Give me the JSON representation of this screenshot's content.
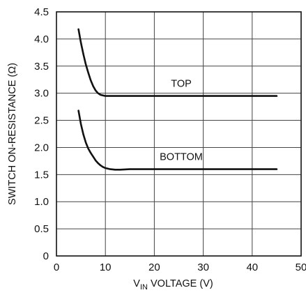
{
  "chart_data": {
    "type": "line",
    "title": "",
    "xlabel_prefix": "V",
    "xlabel_sub": "IN",
    "xlabel_suffix": " VOLTAGE (V)",
    "ylabel": "SWITCH ON-RESISTANCE (Ω)",
    "xlim": [
      0,
      50
    ],
    "ylim": [
      0,
      4.5
    ],
    "x_ticks": [
      0,
      10,
      20,
      30,
      40,
      50
    ],
    "x_tick_labels": [
      "0",
      "10",
      "20",
      "30",
      "40",
      "50"
    ],
    "y_ticks": [
      0,
      0.5,
      1.0,
      1.5,
      2.0,
      2.5,
      3.0,
      3.5,
      4.0,
      4.5
    ],
    "y_tick_labels": [
      "0",
      "0.5",
      "1.0",
      "1.5",
      "2.0",
      "2.5",
      "3.0",
      "3.5",
      "4.0",
      "4.5"
    ],
    "grid": true,
    "series": [
      {
        "name": "TOP",
        "x": [
          4.5,
          5,
          5.5,
          6,
          6.5,
          7,
          7.5,
          8,
          8.5,
          9,
          9.5,
          10,
          11,
          12,
          15,
          20,
          25,
          30,
          35,
          40,
          45
        ],
        "y": [
          4.18,
          3.93,
          3.72,
          3.53,
          3.38,
          3.24,
          3.13,
          3.05,
          3.0,
          2.97,
          2.96,
          2.95,
          2.95,
          2.95,
          2.95,
          2.95,
          2.95,
          2.95,
          2.95,
          2.95,
          2.95
        ]
      },
      {
        "name": "BOTTOM",
        "x": [
          4.5,
          5,
          5.5,
          6,
          6.5,
          7,
          7.5,
          8,
          8.5,
          9,
          9.5,
          10,
          11,
          12,
          13,
          15,
          20,
          25,
          30,
          35,
          40,
          45
        ],
        "y": [
          2.68,
          2.43,
          2.24,
          2.09,
          1.98,
          1.9,
          1.83,
          1.76,
          1.71,
          1.67,
          1.64,
          1.62,
          1.6,
          1.59,
          1.59,
          1.6,
          1.6,
          1.6,
          1.6,
          1.6,
          1.6,
          1.6
        ]
      }
    ],
    "annotations": [
      {
        "text": "TOP",
        "x": 25.5,
        "y": 3.12
      },
      {
        "text": "BOTTOM",
        "x": 25.5,
        "y": 1.77
      }
    ]
  }
}
